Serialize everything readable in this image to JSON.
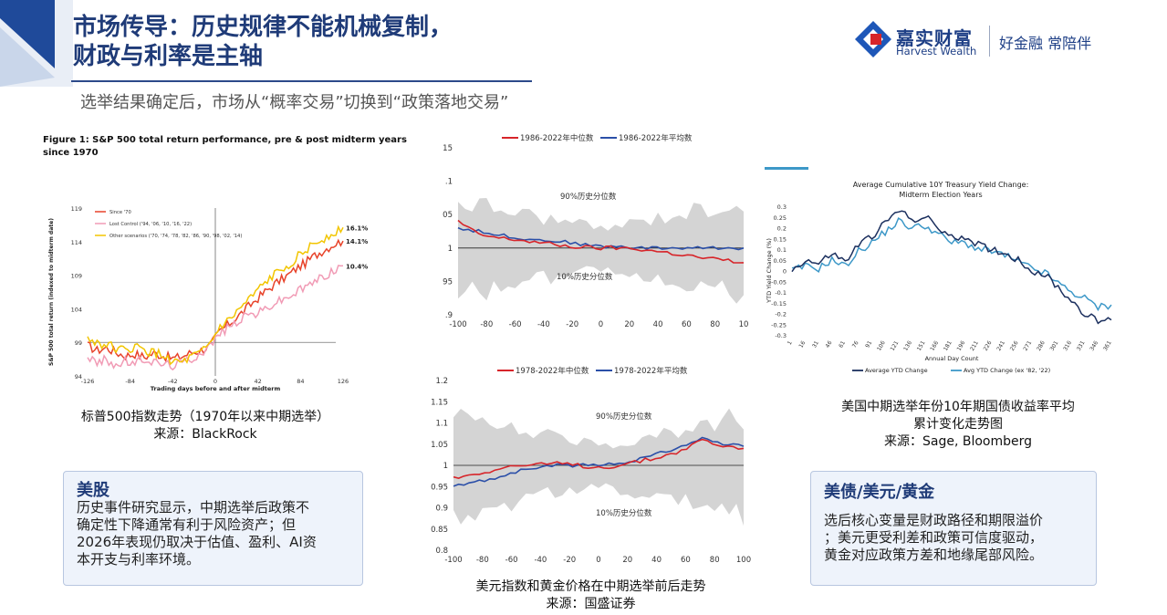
{
  "header": {
    "title_line1": "市场传导：历史规律不能机械复制，",
    "title_line2": "财政与利率是主轴",
    "subtitle": "选举结果确定后，市场从“概率交易”切换到“政策落地交易”"
  },
  "logo": {
    "brand_cn": "嘉实财富",
    "brand_en": "Harvest Wealth",
    "slogan": "好金融 常陪伴"
  },
  "colors": {
    "brand_blue": "#1e3f86",
    "accent_red": "#d7252a",
    "box_bg": "#eef3fb"
  },
  "figure1": {
    "title": "Figure 1: S&P 500 total return performance, pre & post midterm years since 1970",
    "caption_line1": "标普500指数走势（1970年以来中期选举）",
    "caption_line2": "来源：BlackRock",
    "chart_data": {
      "type": "line",
      "xlabel": "Trading days before and after midterm",
      "ylabel": "S&P 500 total return (indexed to midterm date)",
      "x_ticks": [
        "-126",
        "-84",
        "-42",
        "0",
        "42",
        "84",
        "126"
      ],
      "y_ticks": [
        "94",
        "99",
        "104",
        "109",
        "114",
        "119"
      ],
      "ylim": [
        94,
        119
      ],
      "series": [
        {
          "name": "Since '70",
          "color": "#e8432a",
          "end_label": "14.1%",
          "values": [
            98.5,
            97.8,
            98.2,
            97.5,
            97.0,
            97.3,
            96.8,
            97.4,
            97.0,
            96.6,
            96.9,
            97.5,
            97.8,
            98.6,
            100.7,
            101.8,
            103.0,
            104.3,
            105.6,
            106.8,
            107.9,
            108.8,
            109.9,
            110.8,
            111.9,
            112.8,
            113.6,
            114.1
          ]
        },
        {
          "name": "Lost Control ('94, '06, '10, '16, '22)",
          "color": "#f19bb5",
          "end_label": "10.4%",
          "values": [
            97.0,
            95.8,
            96.5,
            95.5,
            96.2,
            95.8,
            96.6,
            96.0,
            95.8,
            95.6,
            96.0,
            96.6,
            97.5,
            98.6,
            100.4,
            101.3,
            102.3,
            103.2,
            103.3,
            104.2,
            105.0,
            105.6,
            106.4,
            107.2,
            108.1,
            108.9,
            109.7,
            110.4
          ]
        },
        {
          "name": "Other scenarios ('70, '74, '78, '82, '86, '90, '98, '02, '14)",
          "color": "#f2c500",
          "end_label": "16.1%",
          "values": [
            99.5,
            99.0,
            98.6,
            98.2,
            97.6,
            98.4,
            97.7,
            97.4,
            97.0,
            96.2,
            95.9,
            96.8,
            97.3,
            98.9,
            101.3,
            102.3,
            103.8,
            105.2,
            106.7,
            108.1,
            109.3,
            110.4,
            111.5,
            112.6,
            113.7,
            114.5,
            115.4,
            116.1
          ]
        }
      ]
    }
  },
  "figure2": {
    "caption_line1": "美元指数和黄金价格在中期选举前后走势",
    "caption_line2": "来源：国盛证券",
    "top": {
      "chart_data": {
        "type": "area",
        "legend": [
          "1986-2022年中位数",
          "1986-2022年平均数"
        ],
        "annotations": [
          "90%历史分位数",
          "10%历史分位数"
        ],
        "x_ticks": [
          "-100",
          "-80",
          "-60",
          "-40",
          "-20",
          "0",
          "20",
          "40",
          "60",
          "80",
          "10"
        ],
        "y_ticks": [
          "15",
          ".1",
          "05",
          "1",
          "95",
          ".9"
        ],
        "ylim": [
          0.9,
          1.15
        ],
        "median": [
          1.04,
          1.02,
          1.015,
          1.012,
          1.008,
          1.004,
          1.001,
          1.0,
          1.0,
          0.998,
          0.994,
          0.99,
          0.985,
          0.982,
          0.978
        ],
        "mean": [
          1.03,
          1.025,
          1.02,
          1.015,
          1.012,
          1.01,
          1.006,
          1.002,
          1.002,
          1.0,
          1.0,
          1.0,
          1.0,
          1.0,
          1.0
        ]
      }
    },
    "bottom": {
      "chart_data": {
        "type": "area",
        "legend": [
          "1978-2022年中位数",
          "1978-2022年平均数"
        ],
        "annotations": [
          "90%历史分位数",
          "10%历史分位数"
        ],
        "x_ticks": [
          "-100",
          "-80",
          "-60",
          "-40",
          "-20",
          "0",
          "20",
          "40",
          "60",
          "80",
          "100"
        ],
        "y_ticks": [
          "1.2",
          "1.15",
          "1.1",
          "1.05",
          "1",
          "0.95",
          "0.9",
          "0.85",
          "0.8"
        ],
        "ylim": [
          0.8,
          1.2
        ],
        "median": [
          0.97,
          0.98,
          0.99,
          1.0,
          1.0,
          1.005,
          1.0,
          0.995,
          1.0,
          1.01,
          1.02,
          1.035,
          1.06,
          1.045,
          1.04
        ],
        "mean": [
          0.95,
          0.96,
          0.97,
          0.985,
          0.995,
          1.0,
          1.0,
          1.0,
          1.005,
          1.015,
          1.03,
          1.045,
          1.065,
          1.05,
          1.045
        ]
      }
    }
  },
  "figure3": {
    "title_line1": "Average Cumulative 10Y Treasury Yield Change:",
    "title_line2": "Midterm Election Years",
    "caption_line1": "美国中期选举年份10年期国债收益率平均",
    "caption_line2": "累计变化走势图",
    "caption_line3": "来源：Sage, Bloomberg",
    "chart_data": {
      "type": "line",
      "xlabel": "Annual Day Count",
      "ylabel": "YTD Yield Change (%)",
      "x_ticks": [
        "1",
        "16",
        "31",
        "46",
        "61",
        "76",
        "91",
        "106",
        "121",
        "136",
        "151",
        "166",
        "181",
        "196",
        "211",
        "226",
        "241",
        "256",
        "271",
        "286",
        "301",
        "316",
        "331",
        "346",
        "361"
      ],
      "y_ticks": [
        "0.3",
        "0.25",
        "0.2",
        "0.15",
        "0.1",
        "0.05",
        "0",
        "-0.05",
        "-0.1",
        "-0.15",
        "-0.2",
        "-0.25",
        "-0.3"
      ],
      "ylim": [
        -0.3,
        0.3
      ],
      "series": [
        {
          "name": "Average YTD Change",
          "color": "#1b2f5e",
          "values": [
            0.0,
            0.05,
            0.03,
            0.08,
            0.04,
            0.12,
            0.16,
            0.22,
            0.28,
            0.24,
            0.25,
            0.2,
            0.15,
            0.16,
            0.12,
            0.1,
            0.08,
            0.05,
            0.0,
            -0.02,
            -0.08,
            -0.14,
            -0.2,
            -0.24,
            -0.23
          ]
        },
        {
          "name": "Avg YTD Change (ex '82, '22)",
          "color": "#3d98c8",
          "values": [
            0.0,
            0.02,
            0.01,
            0.05,
            0.02,
            0.09,
            0.13,
            0.18,
            0.23,
            0.2,
            0.21,
            0.17,
            0.13,
            0.13,
            0.1,
            0.09,
            0.07,
            0.04,
            0.01,
            -0.01,
            -0.06,
            -0.1,
            -0.13,
            -0.17,
            -0.16
          ]
        }
      ]
    }
  },
  "box_left": {
    "title": "美股",
    "lines": [
      "历史事件研究显示，中期选举后政策不",
      "确定性下降通常有利于风险资产；但",
      "2026年表现仍取决于估值、盈利、AI资",
      "本开支与利率环境。"
    ]
  },
  "box_right": {
    "title": "美债/美元/黄金",
    "lines": [
      "选后核心变量是财政路径和期限溢价",
      "；美元更受利差和政策可信度驱动，",
      "黄金对应政策方差和地缘尾部风险。"
    ]
  }
}
